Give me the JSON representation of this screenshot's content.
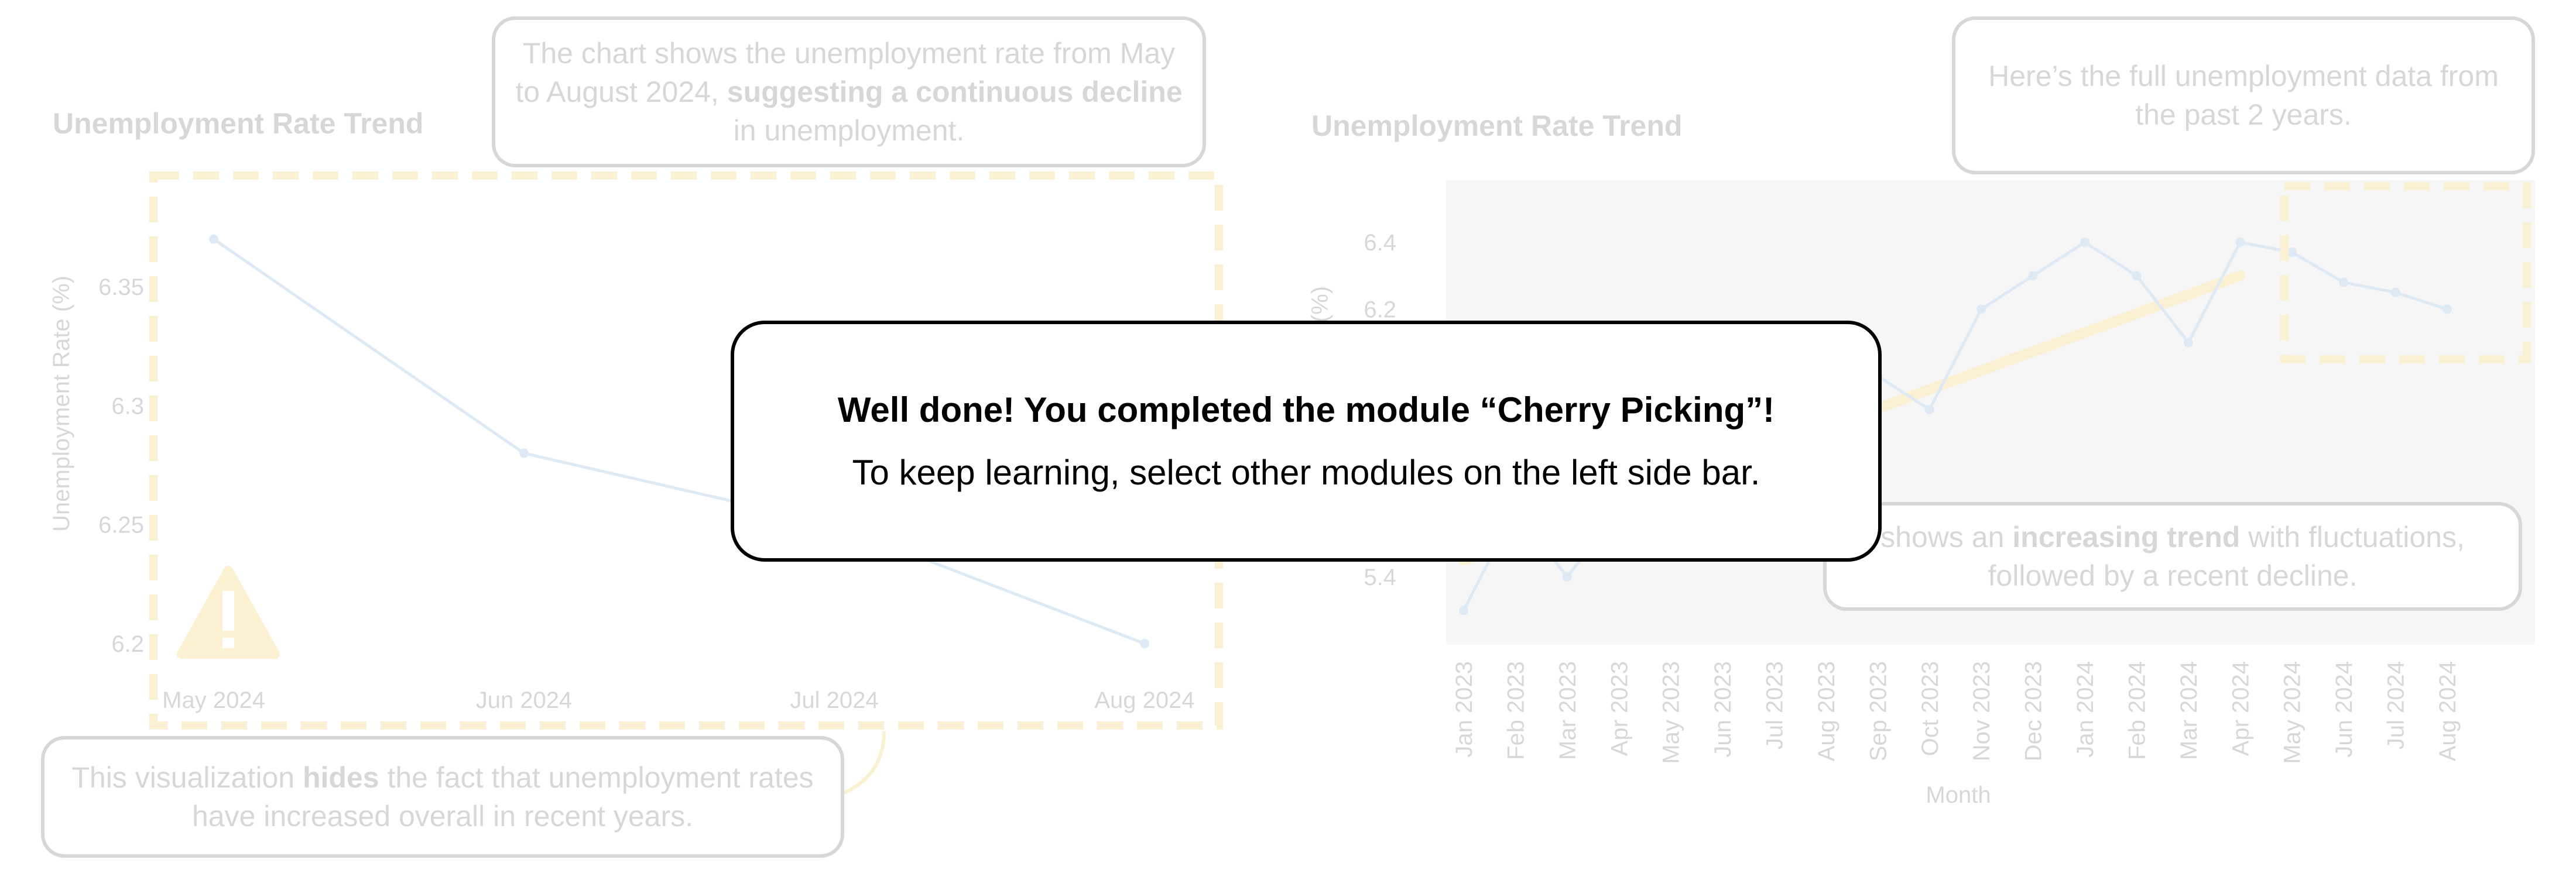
{
  "left_chart": {
    "title": "Unemployment Rate Trend",
    "callout_top": {
      "part1": "The chart shows the unemployment rate from May to August 2024,",
      "bold": "suggesting a continuous decline",
      "part2": "in unemployment."
    },
    "callout_bottom": {
      "part1": "This visualization",
      "bold": "hides",
      "part2": "the fact that unemployment rates have increased overall in recent years."
    },
    "warning_icon": "warning-triangle-icon"
  },
  "right_chart": {
    "title": "Unemployment Rate Trend",
    "callout_top": "Here’s the full unemployment data from the past 2 years.",
    "callout_bottom": {
      "part1": "shows an",
      "bold": "increasing trend",
      "part2": "with fluctuations, followed by a recent decline."
    }
  },
  "modal": {
    "title": "Well done! You completed the module “Cherry Picking”!",
    "text": "To keep learning, select other modules on the left side bar."
  },
  "colors": {
    "line": "#6fa8dc",
    "highlight": "#f5c242",
    "text": "#555555",
    "plot_bg": "#d9d9d9"
  },
  "chart_data": [
    {
      "type": "line",
      "title": "Unemployment Rate Trend",
      "xlabel": "",
      "ylabel": "Unemployment Rate (%)",
      "categories": [
        "May 2024",
        "Jun 2024",
        "Jul 2024",
        "Aug 2024"
      ],
      "values": [
        6.37,
        6.28,
        6.25,
        6.2
      ],
      "yticks": [
        6.2,
        6.25,
        6.3,
        6.35
      ],
      "ylim": [
        6.19,
        6.39
      ]
    },
    {
      "type": "line",
      "title": "Unemployment Rate Trend",
      "xlabel": "Month",
      "ylabel": "(%)",
      "categories": [
        "Jan 2023",
        "Feb 2023",
        "Mar 2023",
        "Apr 2023",
        "May 2023",
        "Jun 2023",
        "Jul 2023",
        "Aug 2023",
        "Sep 2023",
        "Oct 2023",
        "Nov 2023",
        "Dec 2023",
        "Jan 2024",
        "Feb 2024",
        "Mar 2024",
        "Apr 2024",
        "May 2024",
        "Jun 2024",
        "Jul 2024",
        "Aug 2024"
      ],
      "values": [
        5.3,
        5.6,
        5.4,
        5.6,
        5.7,
        5.8,
        5.9,
        6.0,
        6.0,
        5.9,
        6.2,
        6.3,
        6.4,
        6.3,
        6.1,
        6.4,
        6.37,
        6.28,
        6.25,
        6.2
      ],
      "trend": [
        5.45,
        6.3
      ],
      "yticks": [
        5.4,
        6.2,
        6.4
      ],
      "ylim": [
        5.2,
        6.6
      ]
    }
  ]
}
